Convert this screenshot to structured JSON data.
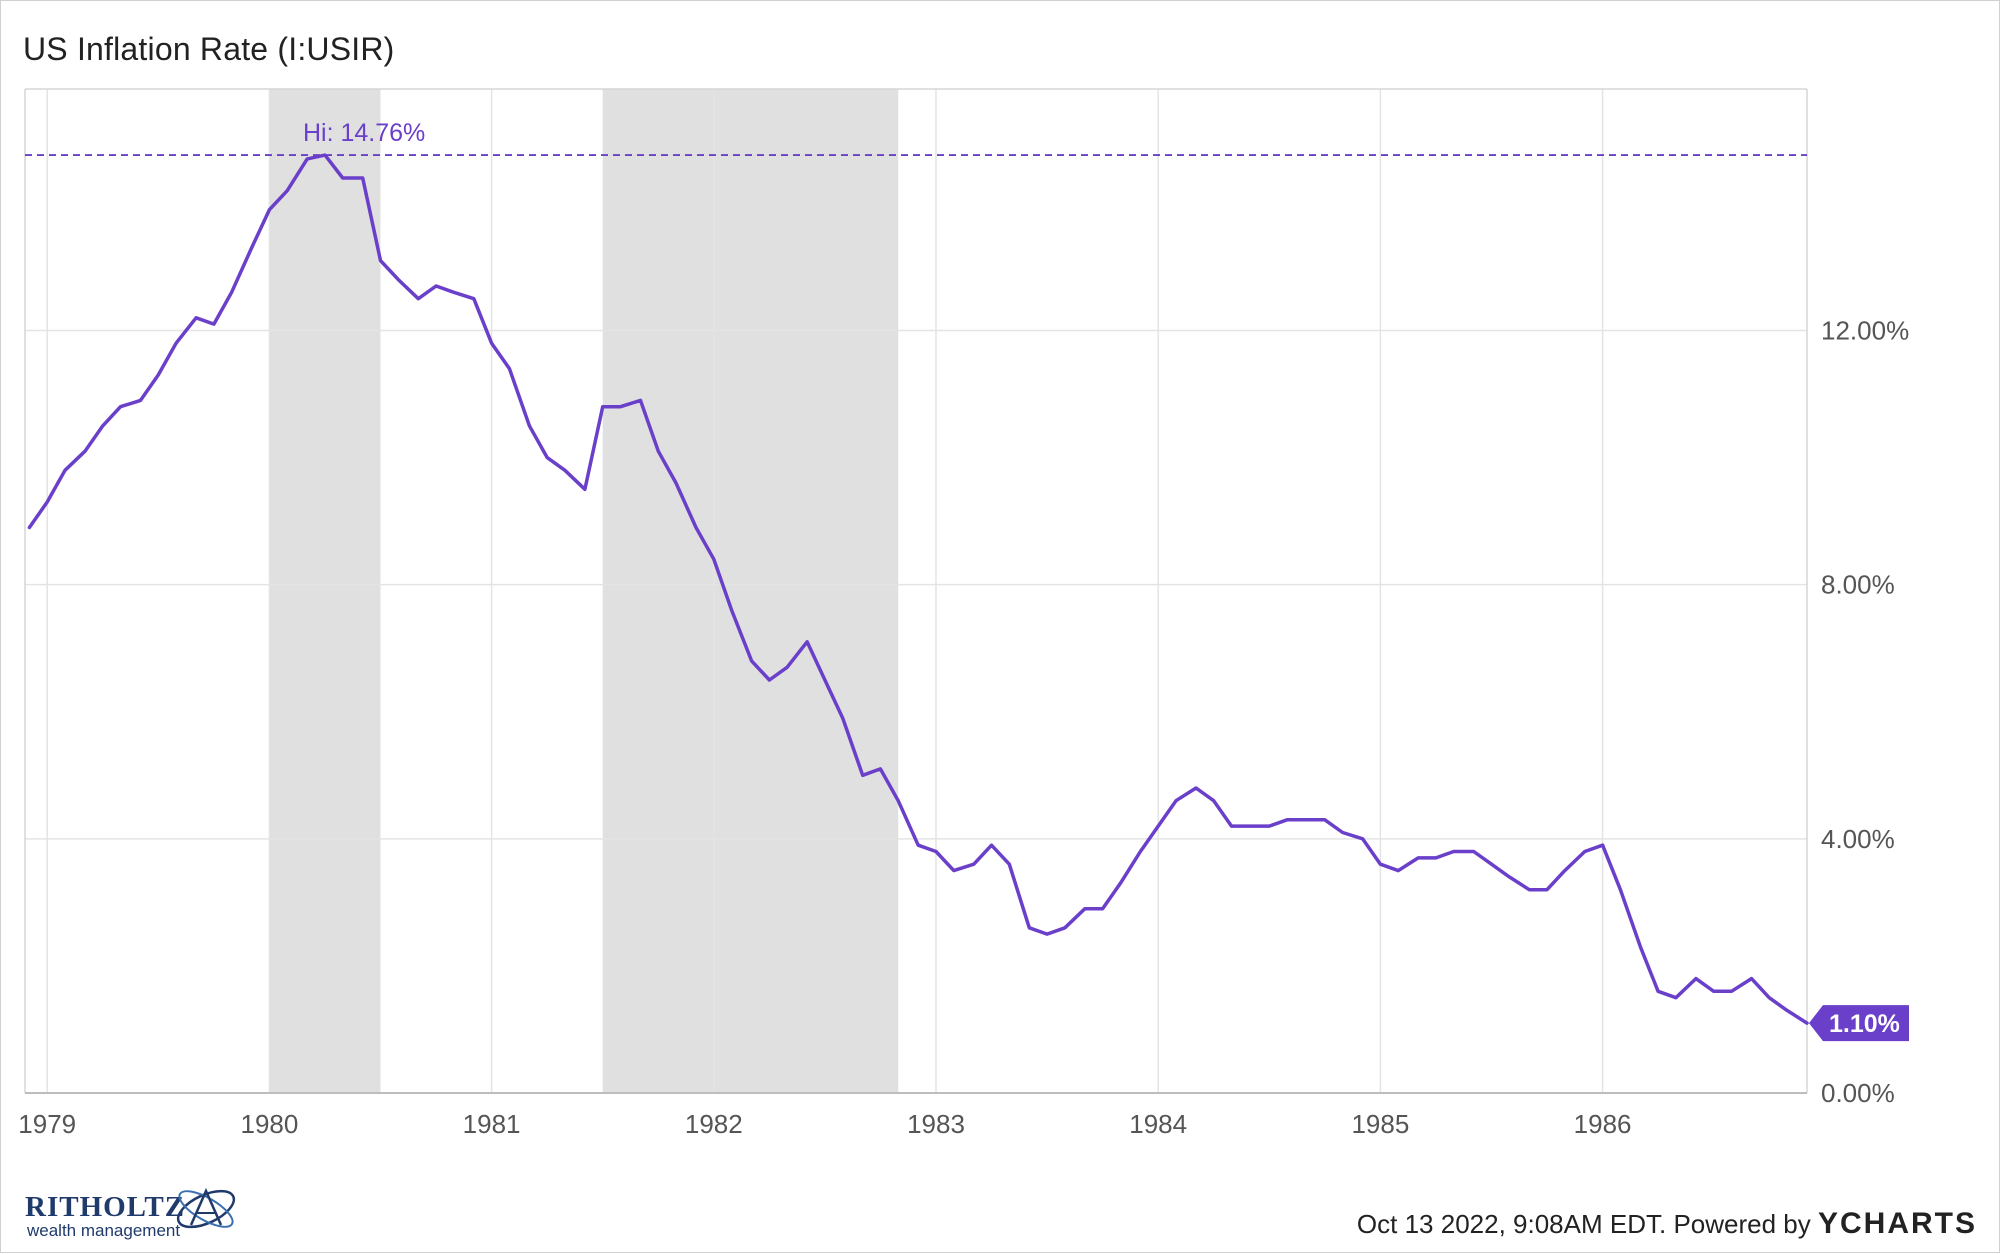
{
  "title": "US Inflation Rate (I:USIR)",
  "footer": {
    "timestamp": "Oct 13 2022, 9:08AM EDT.",
    "powered_by": "Powered by",
    "brand": "YCHARTS"
  },
  "logo": {
    "name": "RITHOLTZ",
    "sub": "wealth management"
  },
  "colors": {
    "line": "#6a3fc9",
    "recession": "#e0e0e0",
    "grid": "#e4e4e4",
    "label_badge": "#6a3fc9"
  },
  "chart_data": {
    "type": "line",
    "title": "US Inflation Rate (I:USIR)",
    "xlabel": "",
    "ylabel": "",
    "ylim": [
      0,
      15.8
    ],
    "yticks": [
      0,
      4,
      8,
      12
    ],
    "ytick_labels": [
      "0.00%",
      "4.00%",
      "8.00%",
      "12.00%"
    ],
    "xticks": [
      1979,
      1980,
      1981,
      1982,
      1983,
      1984,
      1985,
      1986
    ],
    "xlim": [
      1978.9,
      1986.92
    ],
    "grid": true,
    "y_axis_side": "right",
    "high_marker": {
      "value": 14.76,
      "label": "Hi: 14.76%"
    },
    "last_value_label": "1.10%",
    "recession_bands": [
      [
        1980.0,
        1980.5
      ],
      [
        1981.5,
        1982.83
      ]
    ],
    "series": [
      {
        "x": [
          1978.92,
          1979.0,
          1979.08,
          1979.17,
          1979.25,
          1979.33,
          1979.42,
          1979.5,
          1979.58,
          1979.67,
          1979.75,
          1979.83,
          1979.92,
          1980.0,
          1980.08,
          1980.17,
          1980.25,
          1980.33,
          1980.42,
          1980.5,
          1980.58,
          1980.67,
          1980.75,
          1980.83,
          1980.92,
          1981.0,
          1981.08,
          1981.17,
          1981.25,
          1981.33,
          1981.42,
          1981.5,
          1981.58,
          1981.67,
          1981.75,
          1981.83,
          1981.92,
          1982.0,
          1982.08,
          1982.17,
          1982.25,
          1982.33,
          1982.42,
          1982.5,
          1982.58,
          1982.67,
          1982.75,
          1982.83,
          1982.92,
          1983.0,
          1983.08,
          1983.17,
          1983.25,
          1983.33,
          1983.42,
          1983.5,
          1983.58,
          1983.67,
          1983.75,
          1983.83,
          1983.92,
          1984.0,
          1984.08,
          1984.17,
          1984.25,
          1984.33,
          1984.42,
          1984.5,
          1984.58,
          1984.67,
          1984.75,
          1984.83,
          1984.92,
          1985.0,
          1985.08,
          1985.17,
          1985.25,
          1985.33,
          1985.42,
          1985.5,
          1985.58,
          1985.67,
          1985.75,
          1985.83,
          1985.92,
          1986.0,
          1986.08,
          1986.17,
          1986.25,
          1986.33,
          1986.42,
          1986.5,
          1986.58,
          1986.67,
          1986.75,
          1986.83,
          1986.92
        ],
        "y": [
          8.9,
          9.3,
          9.8,
          10.1,
          10.5,
          10.8,
          10.9,
          11.3,
          11.8,
          12.2,
          12.1,
          12.6,
          13.3,
          13.9,
          14.2,
          14.7,
          14.76,
          14.4,
          14.4,
          13.1,
          12.8,
          12.5,
          12.7,
          12.6,
          12.5,
          11.8,
          11.4,
          10.5,
          10.0,
          9.8,
          9.5,
          10.8,
          10.8,
          10.9,
          10.1,
          9.6,
          8.9,
          8.4,
          7.6,
          6.8,
          6.5,
          6.7,
          7.1,
          6.5,
          5.9,
          5.0,
          5.1,
          4.6,
          3.9,
          3.8,
          3.5,
          3.6,
          3.9,
          3.6,
          2.6,
          2.5,
          2.6,
          2.9,
          2.9,
          3.3,
          3.8,
          4.2,
          4.6,
          4.8,
          4.6,
          4.2,
          4.2,
          4.2,
          4.3,
          4.3,
          4.3,
          4.1,
          4.0,
          3.6,
          3.5,
          3.7,
          3.7,
          3.8,
          3.8,
          3.6,
          3.4,
          3.2,
          3.2,
          3.5,
          3.8,
          3.9,
          3.2,
          2.3,
          1.6,
          1.5,
          1.8,
          1.6,
          1.6,
          1.8,
          1.5,
          1.3,
          1.1
        ]
      }
    ]
  }
}
